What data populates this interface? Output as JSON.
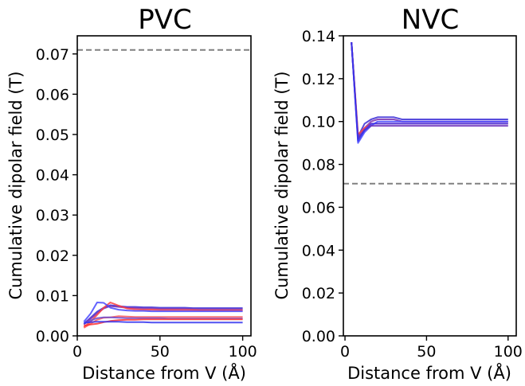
{
  "chart_data": [
    {
      "type": "line",
      "title": "PVC",
      "xlabel": "Distance from V (Å)",
      "ylabel": "Cumulative dipolar field (T)",
      "xlim": [
        0,
        105
      ],
      "ylim": [
        0,
        0.0745
      ],
      "xticks": [
        "0",
        "50",
        "100"
      ],
      "xtick_values": [
        0,
        50,
        100
      ],
      "yticks": [
        "0.00",
        "0.01",
        "0.02",
        "0.03",
        "0.04",
        "0.05",
        "0.06",
        "0.07"
      ],
      "ytick_values": [
        0,
        0.01,
        0.02,
        0.03,
        0.04,
        0.05,
        0.06,
        0.07
      ],
      "reference_line": {
        "y": 0.071,
        "color": "#808080",
        "style": "dashed"
      },
      "x": [
        4,
        8,
        12,
        16,
        20,
        25,
        30,
        35,
        40,
        45,
        50,
        55,
        60,
        65,
        70,
        75,
        80,
        85,
        90,
        95,
        100
      ],
      "series": [
        {
          "color": "#3a2bd6",
          "values": [
            0.003,
            0.0045,
            0.006,
            0.007,
            0.0076,
            0.0074,
            0.0072,
            0.0072,
            0.0071,
            0.0071,
            0.007,
            0.007,
            0.007,
            0.007,
            0.0069,
            0.0069,
            0.0069,
            0.0069,
            0.0069,
            0.0069,
            0.0069
          ]
        },
        {
          "color": "#7a2fb0",
          "values": [
            0.0028,
            0.0042,
            0.0056,
            0.0068,
            0.0074,
            0.0072,
            0.007,
            0.0069,
            0.0068,
            0.0068,
            0.0067,
            0.0067,
            0.0067,
            0.0067,
            0.0066,
            0.0066,
            0.0066,
            0.0066,
            0.0066,
            0.0066,
            0.0066
          ]
        },
        {
          "color": "#ff4040",
          "values": [
            0.0022,
            0.0035,
            0.0052,
            0.007,
            0.0083,
            0.0075,
            0.0068,
            0.0066,
            0.0065,
            0.0065,
            0.0064,
            0.0064,
            0.0064,
            0.0064,
            0.0064,
            0.0063,
            0.0063,
            0.0063,
            0.0063,
            0.0063,
            0.0063
          ]
        },
        {
          "color": "#4848ff",
          "values": [
            0.0035,
            0.0055,
            0.0083,
            0.0082,
            0.007,
            0.0065,
            0.0063,
            0.0062,
            0.0062,
            0.0061,
            0.0061,
            0.0061,
            0.0061,
            0.0061,
            0.0061,
            0.0061,
            0.0061,
            0.0061,
            0.0061,
            0.0061,
            0.0061
          ]
        },
        {
          "color": "#ff5a5a",
          "values": [
            0.002,
            0.003,
            0.004,
            0.0045,
            0.0046,
            0.0049,
            0.0048,
            0.0047,
            0.0047,
            0.0047,
            0.0047,
            0.0047,
            0.0047,
            0.0047,
            0.0047,
            0.0047,
            0.0047,
            0.0047,
            0.0047,
            0.0047,
            0.0047
          ]
        },
        {
          "color": "#6a4bd0",
          "values": [
            0.003,
            0.0038,
            0.0044,
            0.0046,
            0.0046,
            0.0045,
            0.0044,
            0.0044,
            0.0044,
            0.0044,
            0.0044,
            0.0043,
            0.0043,
            0.0043,
            0.0043,
            0.0043,
            0.0043,
            0.0043,
            0.0043,
            0.0043,
            0.0043
          ]
        },
        {
          "color": "#ff3030",
          "values": [
            0.0025,
            0.0028,
            0.003,
            0.0034,
            0.0037,
            0.0039,
            0.004,
            0.004,
            0.0041,
            0.0041,
            0.0041,
            0.0041,
            0.0041,
            0.0041,
            0.0041,
            0.0041,
            0.0041,
            0.0041,
            0.0041,
            0.0041,
            0.0041
          ]
        },
        {
          "color": "#3333ee",
          "values": [
            0.0032,
            0.0034,
            0.0035,
            0.0035,
            0.0035,
            0.0035,
            0.0034,
            0.0034,
            0.0034,
            0.0033,
            0.0033,
            0.0033,
            0.0033,
            0.0033,
            0.0033,
            0.0033,
            0.0033,
            0.0033,
            0.0033,
            0.0033,
            0.0033
          ]
        }
      ]
    },
    {
      "type": "line",
      "title": "NVC",
      "xlabel": "Distance from V (Å)",
      "ylabel": "Cumulative dipolar field (T)",
      "xlim": [
        -1,
        105
      ],
      "ylim": [
        0,
        0.14
      ],
      "xticks": [
        "0",
        "50",
        "100"
      ],
      "xtick_values": [
        0,
        50,
        100
      ],
      "yticks": [
        "0.00",
        "0.02",
        "0.04",
        "0.06",
        "0.08",
        "0.10",
        "0.12",
        "0.14"
      ],
      "ytick_values": [
        0,
        0.02,
        0.04,
        0.06,
        0.08,
        0.1,
        0.12,
        0.14
      ],
      "reference_line": {
        "y": 0.071,
        "color": "#808080",
        "style": "dashed"
      },
      "x": [
        4,
        8,
        12,
        16,
        20,
        25,
        30,
        35,
        40,
        45,
        50,
        55,
        60,
        65,
        70,
        75,
        80,
        85,
        90,
        95,
        100
      ],
      "series": [
        {
          "color": "#3a2bd6",
          "values": [
            0.137,
            0.093,
            0.099,
            0.101,
            0.102,
            0.102,
            0.102,
            0.101,
            0.101,
            0.101,
            0.101,
            0.101,
            0.101,
            0.101,
            0.101,
            0.101,
            0.101,
            0.101,
            0.101,
            0.101,
            0.101
          ]
        },
        {
          "color": "#7a2fb0",
          "values": [
            0.137,
            0.092,
            0.097,
            0.1,
            0.101,
            0.101,
            0.101,
            0.1,
            0.1,
            0.1,
            0.1,
            0.1,
            0.1,
            0.1,
            0.1,
            0.1,
            0.1,
            0.1,
            0.1,
            0.1,
            0.1
          ]
        },
        {
          "color": "#ff4040",
          "values": [
            0.137,
            0.094,
            0.097,
            0.099,
            0.099,
            0.099,
            0.099,
            0.099,
            0.099,
            0.099,
            0.099,
            0.099,
            0.099,
            0.099,
            0.099,
            0.099,
            0.099,
            0.099,
            0.099,
            0.099,
            0.099
          ]
        },
        {
          "color": "#4848ff",
          "values": [
            0.137,
            0.09,
            0.095,
            0.098,
            0.1,
            0.1,
            0.1,
            0.1,
            0.1,
            0.1,
            0.1,
            0.1,
            0.1,
            0.1,
            0.1,
            0.1,
            0.1,
            0.1,
            0.1,
            0.1,
            0.1
          ]
        },
        {
          "color": "#6a2db8",
          "values": [
            0.137,
            0.092,
            0.096,
            0.098,
            0.098,
            0.098,
            0.098,
            0.098,
            0.098,
            0.098,
            0.098,
            0.098,
            0.098,
            0.098,
            0.098,
            0.098,
            0.098,
            0.098,
            0.098,
            0.098,
            0.098
          ]
        },
        {
          "color": "#3333ee",
          "values": [
            0.137,
            0.091,
            0.096,
            0.099,
            0.099,
            0.099,
            0.099,
            0.099,
            0.099,
            0.099,
            0.099,
            0.099,
            0.099,
            0.099,
            0.099,
            0.099,
            0.099,
            0.099,
            0.099,
            0.099,
            0.099
          ]
        }
      ]
    }
  ]
}
